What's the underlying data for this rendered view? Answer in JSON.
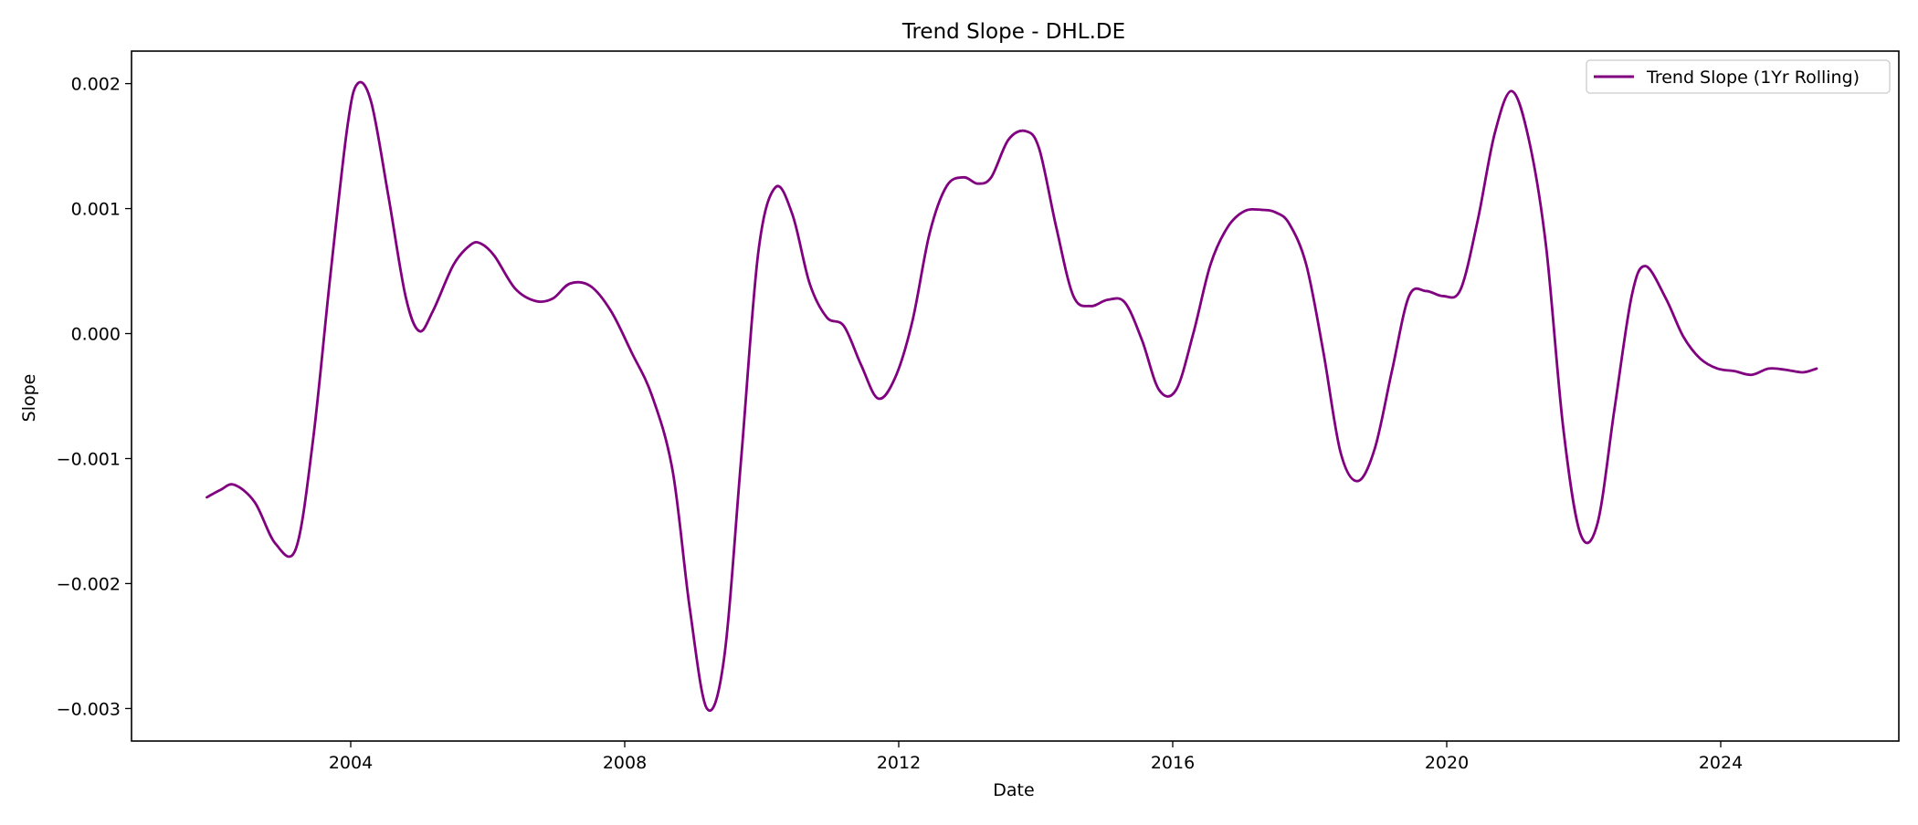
{
  "chart_data": {
    "type": "line",
    "title": "Trend Slope - DHL.DE",
    "xlabel": "Date",
    "ylabel": "Slope",
    "x_ticks": [
      "2004",
      "2008",
      "2012",
      "2016",
      "2020",
      "2024"
    ],
    "x_tick_values": [
      2004,
      2008,
      2012,
      2016,
      2020,
      2024
    ],
    "y_ticks": [
      "0.002",
      "0.001",
      "0.000",
      "−0.001",
      "−0.002",
      "−0.003"
    ],
    "y_tick_values": [
      0.002,
      0.001,
      0.0,
      -0.001,
      -0.002,
      -0.003
    ],
    "xlim": [
      2000.8,
      2026.6
    ],
    "ylim": [
      -0.00326,
      0.00226
    ],
    "grid": false,
    "legend_position": "top-right",
    "series": [
      {
        "name": "Trend Slope (1Yr Rolling)",
        "color": "#800080",
        "x": [
          2001.9,
          2002.1,
          2002.3,
          2002.6,
          2002.9,
          2003.2,
          2003.45,
          2003.7,
          2003.95,
          2004.1,
          2004.3,
          2004.55,
          2004.8,
          2005.0,
          2005.2,
          2005.5,
          2005.75,
          2005.9,
          2006.1,
          2006.4,
          2006.7,
          2006.95,
          2007.2,
          2007.5,
          2007.8,
          2008.1,
          2008.4,
          2008.7,
          2008.95,
          2009.2,
          2009.45,
          2009.7,
          2009.95,
          2010.2,
          2010.45,
          2010.7,
          2010.95,
          2011.2,
          2011.45,
          2011.7,
          2011.95,
          2012.2,
          2012.45,
          2012.7,
          2012.95,
          2013.15,
          2013.35,
          2013.6,
          2013.85,
          2014.05,
          2014.3,
          2014.55,
          2014.8,
          2015.05,
          2015.3,
          2015.55,
          2015.8,
          2016.05,
          2016.3,
          2016.55,
          2016.8,
          2017.05,
          2017.3,
          2017.5,
          2017.7,
          2017.95,
          2018.2,
          2018.45,
          2018.7,
          2018.95,
          2019.2,
          2019.45,
          2019.7,
          2019.95,
          2020.2,
          2020.45,
          2020.7,
          2020.95,
          2021.2,
          2021.45,
          2021.7,
          2021.95,
          2022.2,
          2022.45,
          2022.7,
          2022.9,
          2023.2,
          2023.45,
          2023.7,
          2023.95,
          2024.2,
          2024.45,
          2024.7,
          2024.95,
          2025.2,
          2025.4
        ],
        "values": [
          -0.00131,
          -0.00125,
          -0.00121,
          -0.00135,
          -0.00168,
          -0.00172,
          -0.00085,
          0.00045,
          0.00165,
          0.002,
          0.00185,
          0.0011,
          0.0003,
          2e-05,
          0.00018,
          0.00055,
          0.00071,
          0.00072,
          0.00062,
          0.00036,
          0.00026,
          0.00028,
          0.0004,
          0.00038,
          0.00018,
          -0.00015,
          -0.0005,
          -0.0011,
          -0.0022,
          -0.003,
          -0.0026,
          -0.001,
          0.00065,
          0.00117,
          0.00095,
          0.0004,
          0.00013,
          6e-05,
          -0.00025,
          -0.00052,
          -0.00035,
          0.0001,
          0.0008,
          0.00118,
          0.00125,
          0.0012,
          0.00125,
          0.00155,
          0.00162,
          0.00148,
          0.00085,
          0.0003,
          0.00022,
          0.00027,
          0.00025,
          -5e-05,
          -0.00045,
          -0.00045,
          0.0,
          0.00055,
          0.00085,
          0.00098,
          0.00099,
          0.00097,
          0.00088,
          0.00055,
          -0.00015,
          -0.00095,
          -0.00118,
          -0.00092,
          -0.0003,
          0.0003,
          0.00034,
          0.0003,
          0.00035,
          0.0009,
          0.0016,
          0.00194,
          0.00155,
          0.0007,
          -0.00075,
          -0.0016,
          -0.00152,
          -0.0006,
          0.0003,
          0.00054,
          0.00028,
          -2e-05,
          -0.0002,
          -0.00028,
          -0.0003,
          -0.00033,
          -0.00028,
          -0.00029,
          -0.00031,
          -0.00028
        ]
      }
    ]
  }
}
